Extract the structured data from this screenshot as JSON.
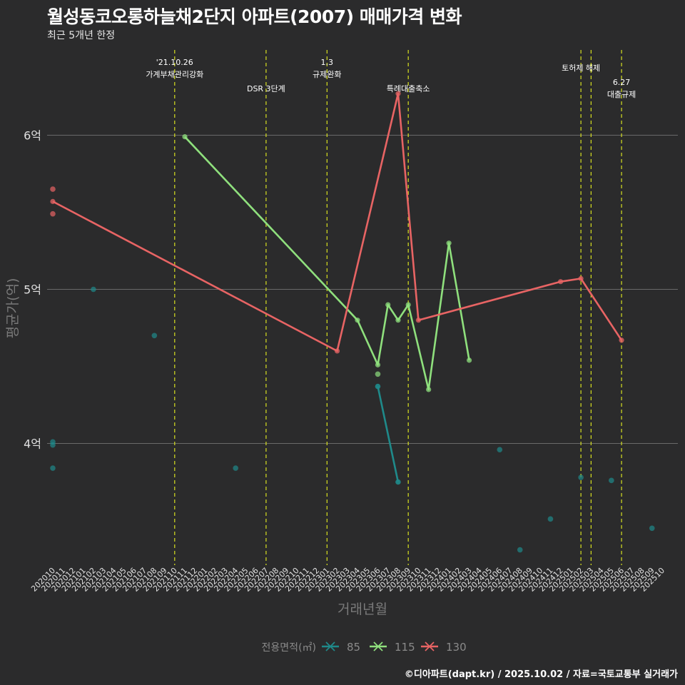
{
  "header": {
    "title": "월성동코오롱하늘채2단지 아파트(2007) 매매가격 변화",
    "subtitle": "최근 5개년 한정",
    "credit": "©디아파트(dapt.kr) / 2025.10.02 / 자료=국토교통부 실거래가"
  },
  "chart_data": {
    "type": "line",
    "title": "월성동코오롱하늘채2단지 아파트(2007) 매매가격 변화",
    "subtitle": "최근 5개년 한정",
    "xlabel": "거래년월",
    "ylabel": "평균가(억)",
    "categories": [
      "202010",
      "202011",
      "202012",
      "202101",
      "202102",
      "202103",
      "202104",
      "202105",
      "202106",
      "202107",
      "202108",
      "202109",
      "202110",
      "202111",
      "202112",
      "202201",
      "202202",
      "202203",
      "202204",
      "202205",
      "202206",
      "202207",
      "202208",
      "202209",
      "202210",
      "202211",
      "202212",
      "202301",
      "202302",
      "202303",
      "202304",
      "202305",
      "202306",
      "202307",
      "202308",
      "202309",
      "202310",
      "202311",
      "202312",
      "202401",
      "202402",
      "202403",
      "202404",
      "202405",
      "202406",
      "202407",
      "202408",
      "202409",
      "202410",
      "202411",
      "202412",
      "202501",
      "202502",
      "202503",
      "202504",
      "202505",
      "202506",
      "202507",
      "202508",
      "202509",
      "202510"
    ],
    "y_ticks": [
      {
        "value": 4,
        "label": "4억"
      },
      {
        "value": 5,
        "label": "5억"
      },
      {
        "value": 6,
        "label": "6억"
      }
    ],
    "ylim": [
      3.2,
      6.55
    ],
    "grid": true,
    "legend": {
      "title": "전용면적(㎡)",
      "position": "bottom"
    },
    "series": [
      {
        "name": "85",
        "color": "#1f8a8a",
        "line": [
          [
            "202306",
            4.37
          ],
          [
            "202308",
            3.75
          ]
        ],
        "points": [
          [
            "202010",
            4.01
          ],
          [
            "202010",
            3.99
          ],
          [
            "202010",
            3.84
          ],
          [
            "202102",
            5.0
          ],
          [
            "202108",
            4.7
          ],
          [
            "202204",
            3.84
          ],
          [
            "202306",
            4.37
          ],
          [
            "202308",
            3.75
          ],
          [
            "202406",
            3.96
          ],
          [
            "202408",
            3.31
          ],
          [
            "202411",
            3.51
          ],
          [
            "202502",
            3.78
          ],
          [
            "202505",
            3.76
          ],
          [
            "202509",
            3.45
          ]
        ]
      },
      {
        "name": "115",
        "color": "#8fe07d",
        "line": [
          [
            "202111",
            5.99
          ],
          [
            "202304",
            4.8
          ],
          [
            "202306",
            4.51
          ],
          [
            "202307",
            4.9
          ],
          [
            "202308",
            4.8
          ],
          [
            "202309",
            4.9
          ],
          [
            "202311",
            4.35
          ],
          [
            "202401",
            5.3
          ],
          [
            "202403",
            4.54
          ]
        ],
        "points": [
          [
            "202306",
            4.45
          ]
        ]
      },
      {
        "name": "130",
        "color": "#e86464",
        "line": [
          [
            "202010",
            5.57
          ],
          [
            "202302",
            4.6
          ],
          [
            "202308",
            6.27
          ],
          [
            "202310",
            4.8
          ],
          [
            "202412",
            5.05
          ],
          [
            "202502",
            5.07
          ],
          [
            "202506",
            4.67
          ]
        ],
        "points": [
          [
            "202010",
            5.65
          ],
          [
            "202010",
            5.49
          ]
        ]
      }
    ],
    "events": [
      {
        "date": "202110",
        "lines": [
          "'21.10.26",
          "가계부채관리강화"
        ],
        "row": 0
      },
      {
        "date": "202207",
        "lines": [
          "DSR 3단계"
        ],
        "row": 2
      },
      {
        "date": "202301",
        "lines": [
          "1.3",
          "규제완화"
        ],
        "row": 0
      },
      {
        "date": "202309",
        "lines": [
          "특례대출축소"
        ],
        "row": 2
      },
      {
        "date": "202502",
        "lines": [
          "토허제 해제"
        ],
        "row": 1
      },
      {
        "date": "202503",
        "lines": [],
        "row": 1
      },
      {
        "date": "202506",
        "lines": [
          "6.27",
          "대출규제"
        ],
        "row": 1.8
      }
    ],
    "event_color": "#d7e020"
  }
}
